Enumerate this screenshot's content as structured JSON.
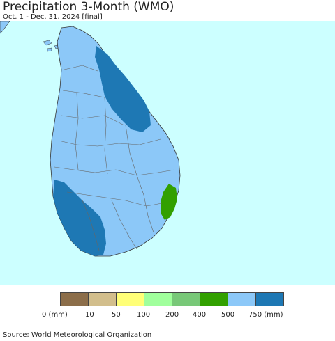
{
  "title": "Precipitation 3-Month (WMO)",
  "subtitle": "Oct. 1 - Dec. 31, 2024 [final]",
  "colors": {
    "ocean": "#ccffff",
    "land_default": "#8cc8f8",
    "land_high": "#1e78b4",
    "land_green": "#32a000"
  },
  "legend": {
    "colors": [
      "#8c6e4a",
      "#d2be8c",
      "#ffff78",
      "#a0ff9c",
      "#78c878",
      "#32a000",
      "#8cc8f8",
      "#1e78b4"
    ],
    "labels": [
      "0 (mm)",
      "10",
      "50",
      "100",
      "200",
      "400",
      "500",
      "750 (mm)"
    ]
  },
  "source": "Source: World Meteorological Organization"
}
